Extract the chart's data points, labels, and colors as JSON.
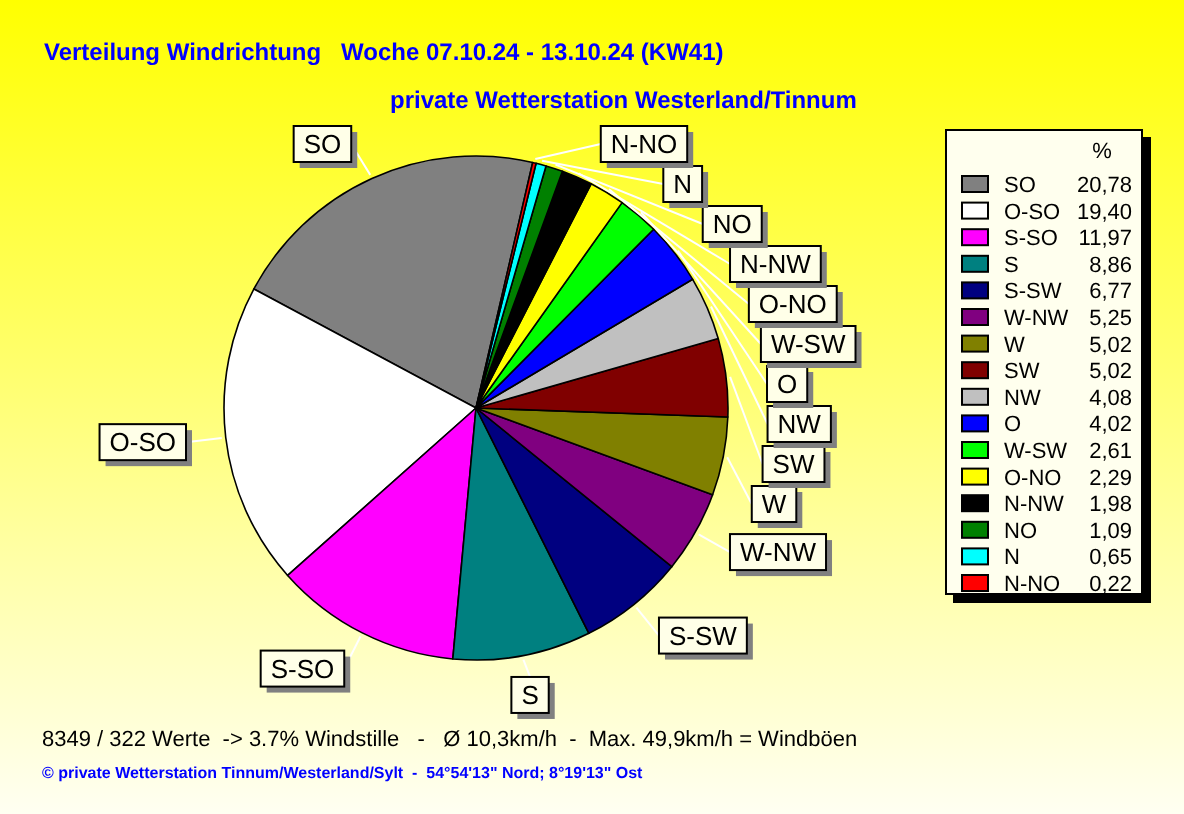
{
  "chart_data": {
    "type": "pie",
    "title": "Verteilung Windrichtung   Woche 07.10.24 - 13.10.24 (KW41)",
    "subtitle": "private Wetterstation Westerland/Tinnum",
    "categories": [
      "SO",
      "O-SO",
      "S-SO",
      "S",
      "S-SW",
      "W-NW",
      "W",
      "SW",
      "NW",
      "O",
      "W-SW",
      "O-NO",
      "N-NW",
      "NO",
      "N",
      "N-NO"
    ],
    "values": [
      20.78,
      19.4,
      11.97,
      8.86,
      6.77,
      5.25,
      5.02,
      5.02,
      4.08,
      4.02,
      2.61,
      2.29,
      1.98,
      1.09,
      0.65,
      0.22
    ],
    "value_labels": [
      "20,78",
      "19,40",
      "11,97",
      "8,86",
      "6,77",
      "5,25",
      "5,02",
      "5,02",
      "4,08",
      "4,02",
      "2,61",
      "2,29",
      "1,98",
      "1,09",
      "0,65",
      "0,22"
    ],
    "colors": [
      "#808080",
      "#ffffff",
      "#ff00ff",
      "#008080",
      "#000080",
      "#800080",
      "#808000",
      "#800000",
      "#c0c0c0",
      "#0000ff",
      "#00ff00",
      "#ffff00",
      "#000000",
      "#008000",
      "#00ffff",
      "#ff0000"
    ],
    "legend": "right",
    "legend_title": "%",
    "annotations": [
      "8349 / 322 Werte  -> 3.7% Windstille   -   Ø 10,3km/h  -  Max. 49,9km/h = Windböen",
      "© private Wetterstation Tinnum/Westerland/Sylt  -  54°54'13\" Nord; 8°19'13\" Ost"
    ]
  }
}
